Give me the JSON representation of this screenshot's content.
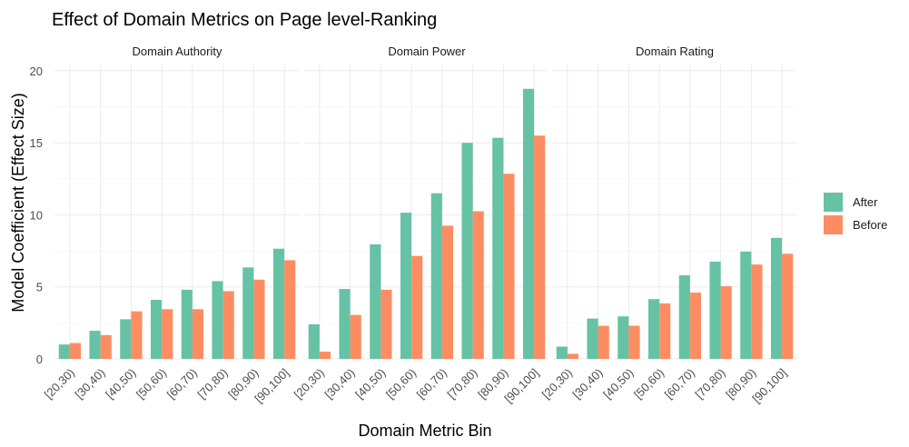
{
  "chart_data": {
    "type": "bar",
    "title": "Effect of Domain Metrics on Page level-Ranking",
    "xlabel": "Domain Metric Bin",
    "ylabel": "Model Coefficient (Effect Size)",
    "ylim": [
      0,
      20.5
    ],
    "yticks": [
      0,
      5,
      10,
      15,
      20
    ],
    "grid": true,
    "legend_position": "right",
    "categories": [
      "[20,30)",
      "[30,40)",
      "[40,50)",
      "[50,60)",
      "[60,70)",
      "[70,80)",
      "[80,90)",
      "[90,100]"
    ],
    "series_colors": {
      "After": "#66c2a5",
      "Before": "#fc8d62"
    },
    "legend": [
      "After",
      "Before"
    ],
    "facets": [
      {
        "name": "Domain Authority",
        "series": [
          {
            "name": "After",
            "values": [
              1.0,
              1.95,
              2.75,
              4.1,
              4.8,
              5.4,
              6.35,
              7.65
            ]
          },
          {
            "name": "Before",
            "values": [
              1.1,
              1.65,
              3.3,
              3.45,
              3.45,
              4.7,
              5.5,
              6.85
            ]
          }
        ]
      },
      {
        "name": "Domain Power",
        "series": [
          {
            "name": "After",
            "values": [
              2.4,
              4.85,
              7.95,
              10.15,
              11.5,
              15.0,
              15.35,
              18.75
            ]
          },
          {
            "name": "Before",
            "values": [
              0.5,
              3.05,
              4.8,
              7.15,
              9.25,
              10.25,
              12.85,
              15.5
            ]
          }
        ]
      },
      {
        "name": "Domain Rating",
        "series": [
          {
            "name": "After",
            "values": [
              0.85,
              2.8,
              2.95,
              4.15,
              5.8,
              6.75,
              7.45,
              8.4
            ]
          },
          {
            "name": "Before",
            "values": [
              0.35,
              2.3,
              2.3,
              3.85,
              4.6,
              5.05,
              6.55,
              7.3
            ]
          }
        ]
      }
    ]
  }
}
